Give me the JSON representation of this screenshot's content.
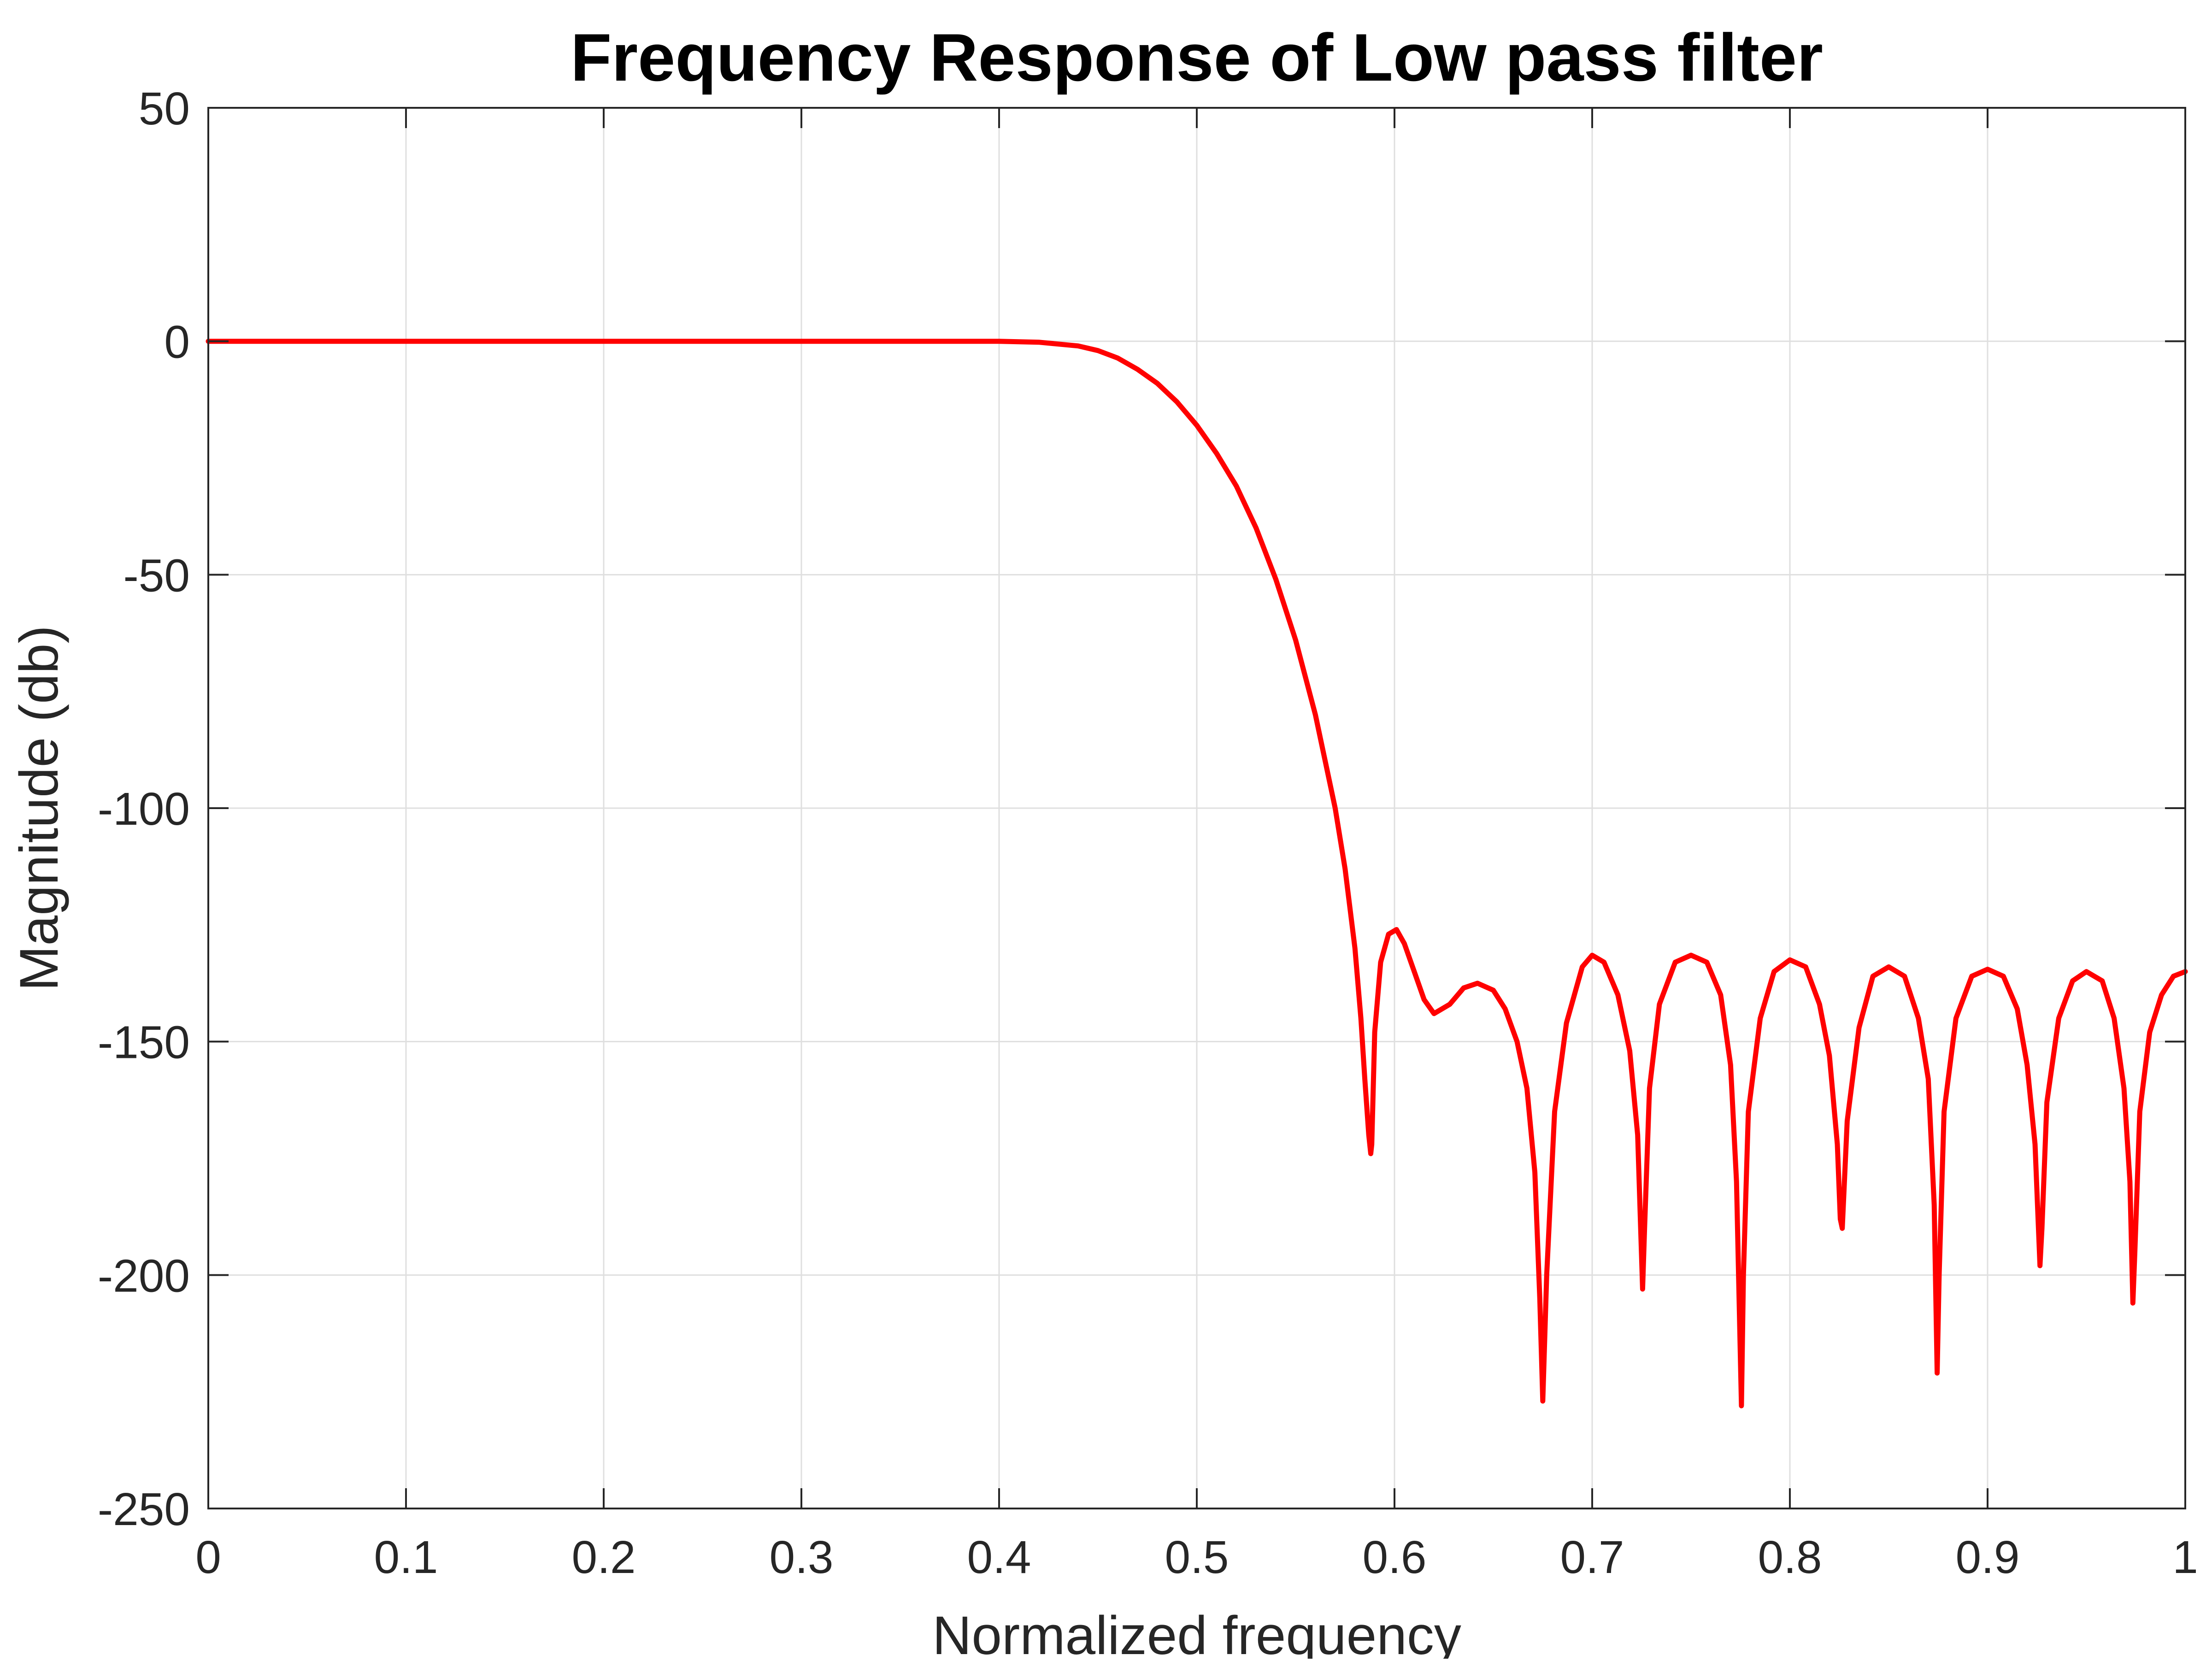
{
  "chart_data": {
    "type": "line",
    "title": "Frequency Response of Low pass filter",
    "xlabel": "Normalized frequency",
    "ylabel": "Magnitude (db)",
    "xlim": [
      0,
      1
    ],
    "ylim": [
      -250,
      50
    ],
    "xticks": [
      0,
      0.1,
      0.2,
      0.3,
      0.4,
      0.5,
      0.6,
      0.7,
      0.8,
      0.9,
      1
    ],
    "xtick_labels": [
      "0",
      "0.1",
      "0.2",
      "0.3",
      "0.4",
      "0.5",
      "0.6",
      "0.7",
      "0.8",
      "0.9",
      "1"
    ],
    "yticks": [
      50,
      0,
      -50,
      -100,
      -150,
      -200,
      -250
    ],
    "ytick_labels": [
      "50",
      "0",
      "-50",
      "-100",
      "-150",
      "-200",
      "-250"
    ],
    "grid": true,
    "series": [
      {
        "color": "#ff0000",
        "x": [
          0,
          0.05,
          0.1,
          0.15,
          0.2,
          0.25,
          0.3,
          0.35,
          0.4,
          0.42,
          0.44,
          0.45,
          0.46,
          0.47,
          0.48,
          0.49,
          0.5,
          0.51,
          0.52,
          0.53,
          0.54,
          0.55,
          0.56,
          0.57,
          0.575,
          0.58,
          0.583,
          0.585,
          0.587,
          0.588,
          0.5885,
          0.59,
          0.593,
          0.597,
          0.601,
          0.605,
          0.61,
          0.615,
          0.62,
          0.628,
          0.635,
          0.642,
          0.65,
          0.656,
          0.662,
          0.667,
          0.671,
          0.6735,
          0.675,
          0.677,
          0.681,
          0.687,
          0.695,
          0.7,
          0.706,
          0.713,
          0.719,
          0.723,
          0.7255,
          0.7265,
          0.729,
          0.734,
          0.742,
          0.75,
          0.758,
          0.765,
          0.77,
          0.773,
          0.7755,
          0.7765,
          0.779,
          0.785,
          0.792,
          0.8,
          0.808,
          0.815,
          0.82,
          0.824,
          0.8255,
          0.8265,
          0.829,
          0.835,
          0.842,
          0.85,
          0.858,
          0.865,
          0.87,
          0.873,
          0.8745,
          0.8755,
          0.878,
          0.884,
          0.892,
          0.9,
          0.908,
          0.915,
          0.92,
          0.924,
          0.9265,
          0.9275,
          0.93,
          0.936,
          0.943,
          0.95,
          0.958,
          0.964,
          0.969,
          0.972,
          0.9735,
          0.9745,
          0.977,
          0.982,
          0.988,
          0.994,
          1.0
        ],
        "y": [
          0,
          0,
          0,
          0,
          0,
          0,
          0,
          0,
          0,
          -0.2,
          -1,
          -2,
          -3.6,
          -6,
          -9,
          -13,
          -18,
          -24,
          -31,
          -40,
          -51,
          -64,
          -80,
          -100,
          -113,
          -130,
          -145,
          -158,
          -170,
          -174,
          -172,
          -148,
          -133,
          -127,
          -126,
          -129,
          -135,
          -141,
          -144,
          -142,
          -138.5,
          -137.5,
          -139,
          -143,
          -150,
          -160,
          -178,
          -205,
          -227,
          -200,
          -165,
          -146,
          -134,
          -131.5,
          -133,
          -140,
          -152,
          -170,
          -203,
          -190,
          -160,
          -142,
          -133,
          -131.5,
          -133,
          -140,
          -155,
          -180,
          -228,
          -200,
          -165,
          -145,
          -135,
          -132.5,
          -134,
          -142,
          -153,
          -172,
          -188,
          -190,
          -167,
          -147,
          -136,
          -134,
          -136,
          -145,
          -158,
          -185,
          -221,
          -200,
          -165,
          -145,
          -136,
          -134.5,
          -136,
          -143,
          -155,
          -172,
          -198,
          -190,
          -163,
          -145,
          -137,
          -135,
          -137,
          -145,
          -160,
          -180,
          -206,
          -195,
          -165,
          -148,
          -140,
          -136,
          -135
        ]
      }
    ]
  }
}
